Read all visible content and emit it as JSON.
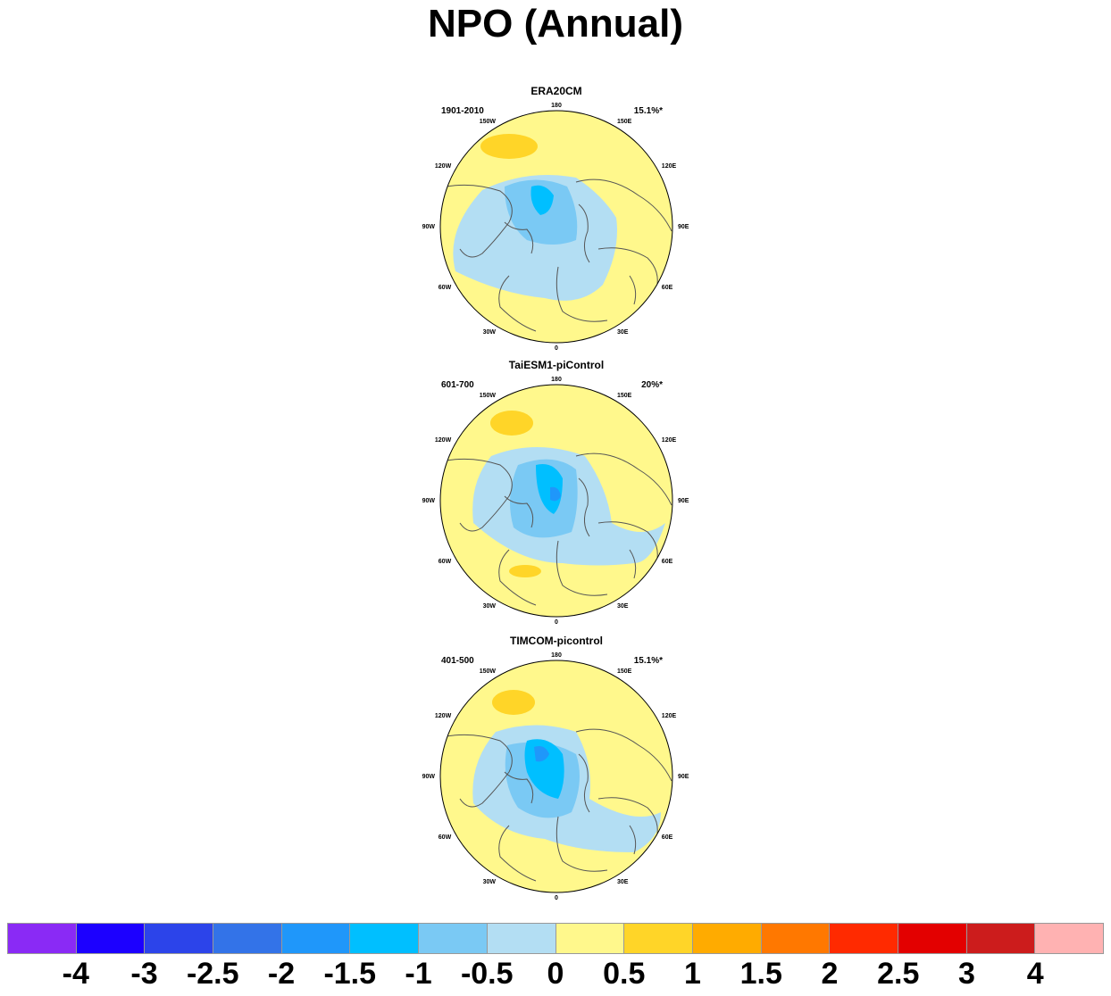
{
  "title": "NPO (Annual)",
  "panels": [
    {
      "name": "ERA20CM",
      "period": "1901-2010",
      "variance": "15.1%*"
    },
    {
      "name": "TaiESM1-piControl",
      "period": "601-700",
      "variance": "20%*"
    },
    {
      "name": "TIMCOM-picontrol",
      "period": "401-500",
      "variance": "15.1%*"
    }
  ],
  "longitude_labels": [
    "180",
    "150E",
    "120E",
    "90E",
    "60E",
    "30E",
    "0",
    "30W",
    "60W",
    "90W",
    "120W",
    "150W"
  ],
  "colorbar": {
    "colors": [
      "#8a2af5",
      "#1c00ff",
      "#2c44ea",
      "#3373e8",
      "#1f97fa",
      "#00bfff",
      "#7ac9f4",
      "#b3def3",
      "#fff88c",
      "#ffd528",
      "#ffab00",
      "#ff7800",
      "#ff2a00",
      "#e30000",
      "#cc1c1c",
      "#ffb2b2"
    ],
    "labels": [
      "-4",
      "-3",
      "-2.5",
      "-2",
      "-1.5",
      "-1",
      "-0.5",
      "0",
      "0.5",
      "1",
      "1.5",
      "2",
      "2.5",
      "3",
      "4"
    ]
  },
  "map_colors": {
    "pos_05": "#fff88c",
    "pos_1": "#ffd528",
    "neg_05": "#b3def3",
    "neg_1": "#7ac9f4",
    "neg_15": "#00bfff",
    "neg_2": "#1f97fa",
    "coast": "#555555"
  }
}
